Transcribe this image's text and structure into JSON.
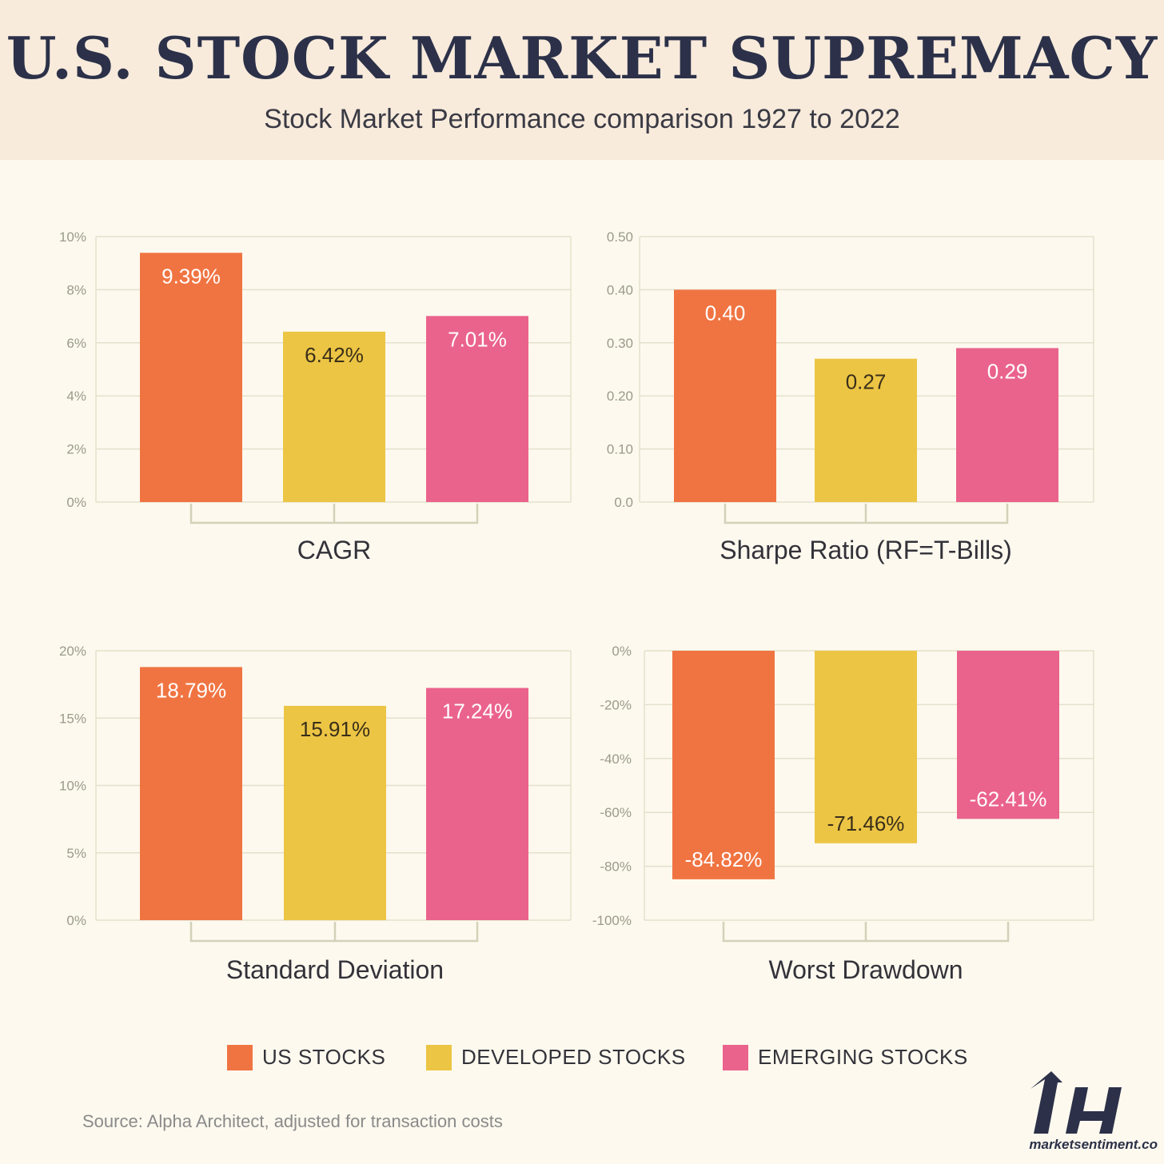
{
  "header": {
    "title": "U.S. STOCK MARKET SUPREMACY",
    "subtitle": "Stock Market Performance comparison 1927 to 2022"
  },
  "colors": {
    "us": "#f07442",
    "developed": "#ecc544",
    "emerging": "#ea638d",
    "grid": "#e3e1cc",
    "axis": "#d3d1b8",
    "tick_text": "#9a9a8a",
    "value_dark": "#3a2f1a",
    "value_light": "#ffffff"
  },
  "legend": [
    {
      "label": "US STOCKS",
      "color": "#f07442"
    },
    {
      "label": "DEVELOPED STOCKS",
      "color": "#ecc544"
    },
    {
      "label": "EMERGING STOCKS",
      "color": "#ea638d"
    }
  ],
  "chart_data": [
    {
      "type": "bar",
      "xlabel": "CAGR",
      "categories": [
        "US STOCKS",
        "DEVELOPED STOCKS",
        "EMERGING STOCKS"
      ],
      "values": [
        9.39,
        6.42,
        7.01
      ],
      "value_labels": [
        "9.39%",
        "6.42%",
        "7.01%"
      ],
      "ylim": [
        0,
        10
      ],
      "yticks": [
        0,
        2,
        4,
        6,
        8,
        10
      ],
      "ytick_labels": [
        "0%",
        "2%",
        "4%",
        "6%",
        "8%",
        "10%"
      ],
      "grid": true
    },
    {
      "type": "bar",
      "xlabel": "Sharpe Ratio (RF=T-Bills)",
      "categories": [
        "US STOCKS",
        "DEVELOPED STOCKS",
        "EMERGING STOCKS"
      ],
      "values": [
        0.4,
        0.27,
        0.29
      ],
      "value_labels": [
        "0.40",
        "0.27",
        "0.29"
      ],
      "ylim": [
        0,
        0.5
      ],
      "yticks": [
        0,
        0.1,
        0.2,
        0.3,
        0.4,
        0.5
      ],
      "ytick_labels": [
        "0.0",
        "0.10",
        "0.20",
        "0.30",
        "0.40",
        "0.50"
      ],
      "grid": true
    },
    {
      "type": "bar",
      "xlabel": "Standard Deviation",
      "categories": [
        "US STOCKS",
        "DEVELOPED STOCKS",
        "EMERGING STOCKS"
      ],
      "values": [
        18.79,
        15.91,
        17.24
      ],
      "value_labels": [
        "18.79%",
        "15.91%",
        "17.24%"
      ],
      "ylim": [
        0,
        20
      ],
      "yticks": [
        0,
        5,
        10,
        15,
        20
      ],
      "ytick_labels": [
        "0%",
        "5%",
        "10%",
        "15%",
        "20%"
      ],
      "grid": true
    },
    {
      "type": "bar",
      "xlabel": "Worst Drawdown",
      "categories": [
        "US STOCKS",
        "DEVELOPED STOCKS",
        "EMERGING STOCKS"
      ],
      "values": [
        -84.82,
        -71.46,
        -62.41
      ],
      "value_labels": [
        "-84.82%",
        "-71.46%",
        "-62.41%"
      ],
      "ylim": [
        -100,
        0
      ],
      "yticks": [
        -100,
        -80,
        -60,
        -40,
        -20,
        0
      ],
      "ytick_labels": [
        "-100%",
        "-80%",
        "-60%",
        "-40%",
        "-20%",
        "0%"
      ],
      "grid": true
    }
  ],
  "source": "Source: Alpha Architect, adjusted for transaction costs",
  "brand": {
    "name": "marketsentiment.co"
  }
}
